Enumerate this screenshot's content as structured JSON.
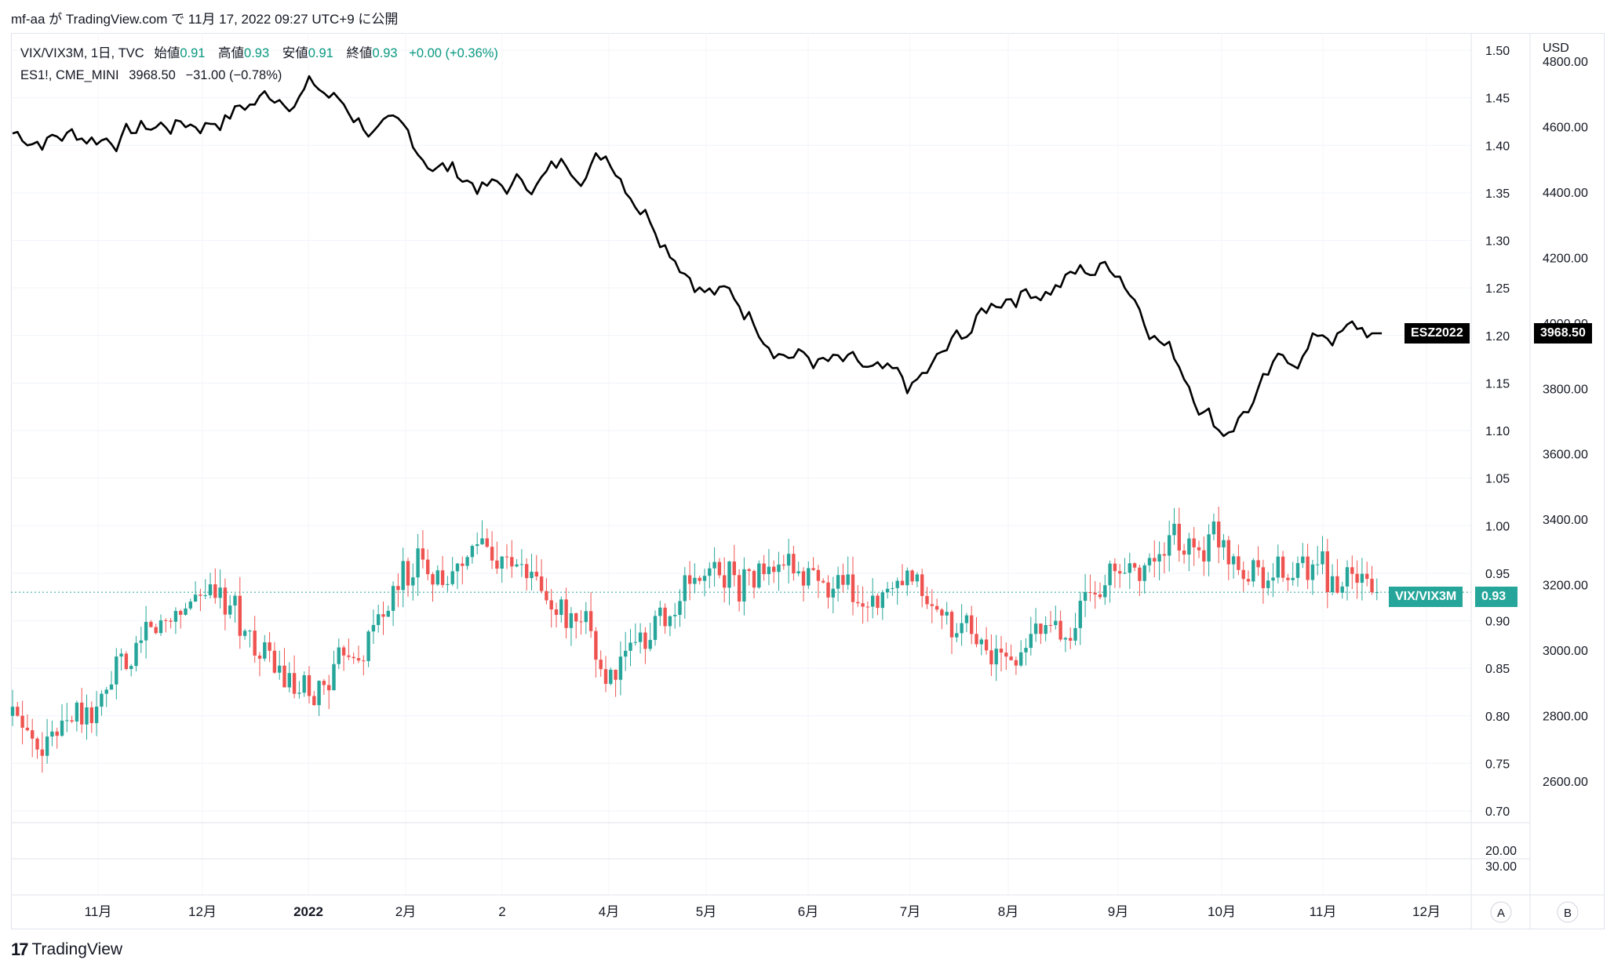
{
  "caption": "mf-aa が TradingView.com で 11月 17, 2022 09:27 UTC+9 に公開",
  "legend": {
    "line1_symbol": "VIX/VIX3M, 1日, TVC",
    "open_label": "始値",
    "open_value": "0.91",
    "high_label": "高値",
    "high_value": "0.93",
    "low_label": "安値",
    "low_value": "0.91",
    "close_label": "終値",
    "close_value": "0.93",
    "change": "+0.00 (+0.36%)",
    "line2_symbol": "ES1!, CME_MINI",
    "line2_value": "3968.50",
    "line2_change": "−31.00 (−0.78%)"
  },
  "right_axis": {
    "unit": "USD",
    "ticks": [
      "4800.00",
      "4600.00",
      "4400.00",
      "4200.00",
      "4000.00",
      "3800.00",
      "3600.00",
      "3400.00",
      "3200.00",
      "3000.00",
      "2800.00",
      "2600.00"
    ]
  },
  "mid_axis": {
    "ticks": [
      "1.50",
      "1.45",
      "1.40",
      "1.35",
      "1.30",
      "1.25",
      "1.20",
      "1.15",
      "1.10",
      "1.05",
      "1.00",
      "0.95",
      "0.90",
      "0.85",
      "0.80",
      "0.75",
      "0.70"
    ],
    "lower_ticks": [
      "20.00",
      "30.00"
    ]
  },
  "x_axis": {
    "labels": [
      "11月",
      "12月",
      "2022",
      "2月",
      "2",
      "4月",
      "5月",
      "6月",
      "7月",
      "8月",
      "9月",
      "10月",
      "11月",
      "12月"
    ]
  },
  "price_tags": {
    "es_name": "ESZ2022",
    "es_value": "3968.50",
    "vix_name": "VIX/VIX3M",
    "vix_value": "0.93"
  },
  "buttons": {
    "auto": "A",
    "b": "B"
  },
  "footer": {
    "logo_mark": "17",
    "brand": "TradingView"
  },
  "colors": {
    "up": "#26a69a",
    "down": "#ef5350",
    "line": "#000000",
    "accent": "#089981"
  },
  "chart_data": [
    {
      "type": "line",
      "series": [
        {
          "name": "ES1!, CME_MINI"
        }
      ],
      "x": [
        "2021-11",
        "2021-12",
        "2022-01",
        "2022-02",
        "2022-03",
        "2022-04",
        "2022-05",
        "2022-06",
        "2022-07",
        "2022-08",
        "2022-09",
        "2022-10",
        "2022-11"
      ],
      "values": [
        4580,
        4620,
        4740,
        4530,
        4400,
        4530,
        4130,
        3900,
        3760,
        4100,
        4180,
        3690,
        3968.5
      ],
      "ylabel": "USD",
      "ylim": [
        2500,
        4850
      ]
    },
    {
      "type": "candlestick",
      "series": [
        {
          "name": "VIX/VIX3M"
        }
      ],
      "x": [
        "2021-11",
        "2021-12",
        "2022-01",
        "2022-02",
        "2022-03",
        "2022-04",
        "2022-05",
        "2022-06",
        "2022-07",
        "2022-08",
        "2022-09",
        "2022-10",
        "2022-11"
      ],
      "values": [
        0.8,
        0.94,
        0.8,
        0.95,
        0.98,
        0.84,
        0.95,
        0.95,
        0.92,
        0.85,
        0.95,
        0.99,
        0.93
      ],
      "ylim": [
        0.68,
        1.52
      ]
    }
  ]
}
